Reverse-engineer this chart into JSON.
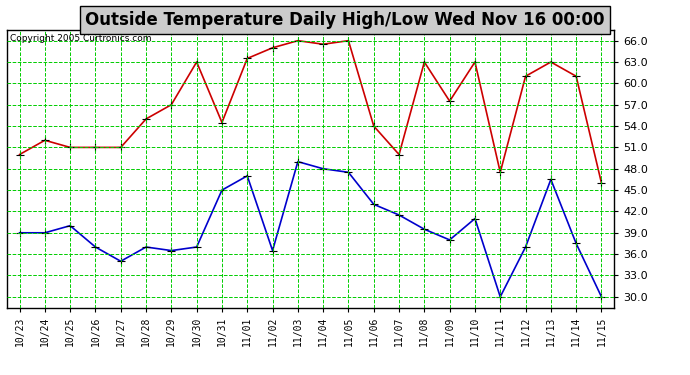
{
  "title": "Outside Temperature Daily High/Low Wed Nov 16 00:00",
  "copyright": "Copyright 2005 Curtronics.com",
  "labels": [
    "10/23",
    "10/24",
    "10/25",
    "10/26",
    "10/27",
    "10/28",
    "10/29",
    "10/30",
    "10/31",
    "11/01",
    "11/02",
    "11/03",
    "11/04",
    "11/05",
    "11/06",
    "11/07",
    "11/08",
    "11/09",
    "11/10",
    "11/11",
    "11/12",
    "11/13",
    "11/14",
    "11/15"
  ],
  "high_temps": [
    50.0,
    52.0,
    51.0,
    51.0,
    51.0,
    55.0,
    57.0,
    63.0,
    54.5,
    63.5,
    65.0,
    66.0,
    65.5,
    66.0,
    54.0,
    50.0,
    63.0,
    57.5,
    63.0,
    47.5,
    61.0,
    63.0,
    61.0,
    46.0
  ],
  "low_temps": [
    39.0,
    39.0,
    40.0,
    37.0,
    35.0,
    37.0,
    36.5,
    37.0,
    45.0,
    47.0,
    36.5,
    49.0,
    48.0,
    47.5,
    43.0,
    41.5,
    39.5,
    38.0,
    41.0,
    30.0,
    37.0,
    46.5,
    37.5,
    30.0
  ],
  "high_color": "#cc0000",
  "low_color": "#0000cc",
  "bg_color": "#ffffff",
  "plot_bg_color": "#ffffff",
  "grid_color": "#00cc00",
  "ylim": [
    28.5,
    67.5
  ],
  "yticks": [
    30.0,
    33.0,
    36.0,
    39.0,
    42.0,
    45.0,
    48.0,
    51.0,
    54.0,
    57.0,
    60.0,
    63.0,
    66.0
  ],
  "title_fontsize": 12,
  "marker": "s",
  "marker_size": 3,
  "linewidth": 1.2,
  "title_bg": "#dddddd"
}
